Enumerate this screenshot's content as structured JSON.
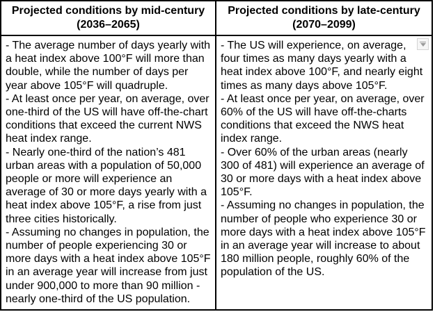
{
  "colors": {
    "table_border": "#000000",
    "text": "#000000",
    "background": "#ffffff",
    "dropdown_border": "#d4d4d4",
    "dropdown_background": "#f6f6f6",
    "dropdown_arrow": "#9a9a9a"
  },
  "icons": {
    "dropdown": "chevron-down"
  },
  "table": {
    "columns": [
      {
        "header": {
          "line1": "Projected conditions by mid-century",
          "line2": "(2036–2065)"
        },
        "items": [
          "- The average number of days yearly with a heat index above 100°F will more than double, while the number of days per year above 105°F will quadruple.",
          "- At least once per year, on average, over one-third of the US will have off-the-chart conditions that exceed the current NWS heat index range.",
          "- Nearly one-third of the nation’s 481 urban areas with a population of 50,000 people or more will experience an average of 30 or more days yearly with a heat index above 105°F, a rise from just three cities historically.",
          "- Assuming no changes in population, the number of people experiencing 30 or more days with a heat index above 105°F in an average year will increase from just under 900,000 to more than 90 million - nearly one-third of the US population."
        ]
      },
      {
        "header": {
          "line1": "Projected conditions by late-century",
          "line2": "(2070–2099)"
        },
        "items": [
          "- The US will experience, on average, four times as many days yearly with a heat index above 100°F, and nearly eight times as many days above 105°F.",
          "- At least once per year, on average, over 60% of the US will have off-the-charts conditions that exceed the NWS heat index range.",
          "- Over 60% of the urban areas (nearly 300 of 481) will experience an average of 30 or more days with a heat index above 105°F.",
          "- Assuming no changes in population, the number of people who experience 30 or more days with a heat index above 105°F in an average year will increase to about 180 million people, roughly 60% of the population of the US."
        ]
      }
    ]
  }
}
